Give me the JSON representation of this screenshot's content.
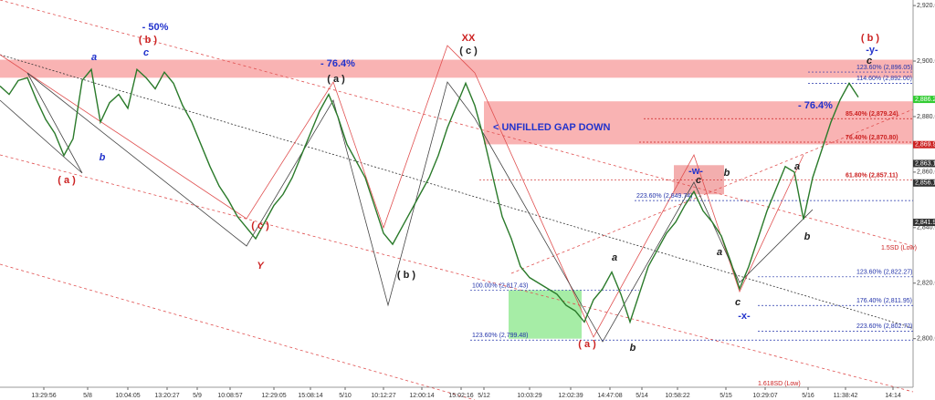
{
  "chart_data": {
    "type": "line",
    "series": [
      {
        "name": "Price",
        "color": "#2a7a2a",
        "values": [
          2891,
          2888,
          2893,
          2894,
          2886,
          2879,
          2874,
          2866,
          2872,
          2893,
          2897,
          2878,
          2885,
          2888,
          2883,
          2897,
          2894,
          2890,
          2896,
          2892,
          2884,
          2878,
          2870,
          2862,
          2855,
          2850,
          2844,
          2840,
          2836,
          2842,
          2848,
          2852,
          2858,
          2866,
          2874,
          2882,
          2888,
          2880,
          2870,
          2864,
          2858,
          2848,
          2838,
          2834,
          2840,
          2846,
          2852,
          2858,
          2866,
          2876,
          2884,
          2892,
          2884,
          2872,
          2858,
          2844,
          2836,
          2826,
          2822,
          2820,
          2818,
          2816,
          2812,
          2810,
          2806,
          2814,
          2818,
          2824,
          2816,
          2806,
          2816,
          2826,
          2832,
          2838,
          2842,
          2848,
          2853,
          2846,
          2842,
          2837,
          2828,
          2818,
          2826,
          2836,
          2846,
          2854,
          2862,
          2860,
          2843,
          2858,
          2868,
          2878,
          2886,
          2892,
          2887
        ]
      }
    ],
    "xlim": [
      0,
      100
    ],
    "xticks": [
      {
        "value": 4.8,
        "label": "13:29:56"
      },
      {
        "value": 9.6,
        "label": "5/8"
      },
      {
        "value": 14,
        "label": "10:04:05"
      },
      {
        "value": 18.3,
        "label": "13:20:27"
      },
      {
        "value": 21.6,
        "label": "5/9"
      },
      {
        "value": 25.2,
        "label": "10:08:57"
      },
      {
        "value": 30,
        "label": "12:29:05"
      },
      {
        "value": 34,
        "label": "15:08:14"
      },
      {
        "value": 37.8,
        "label": "5/10"
      },
      {
        "value": 42,
        "label": "10:12:27"
      },
      {
        "value": 46.2,
        "label": "12:00:14"
      },
      {
        "value": 50.5,
        "label": "15:02:16"
      },
      {
        "value": 53,
        "label": "5/12"
      },
      {
        "value": 58,
        "label": "10:03:29"
      },
      {
        "value": 62.5,
        "label": "12:02:39"
      },
      {
        "value": 66.8,
        "label": "14:47:08"
      },
      {
        "value": 70.3,
        "label": "5/14"
      },
      {
        "value": 74.2,
        "label": "10:58:22"
      },
      {
        "value": 79.5,
        "label": "5/15"
      },
      {
        "value": 83.8,
        "label": "10:29:07"
      },
      {
        "value": 88.5,
        "label": "5/16"
      },
      {
        "value": 92.6,
        "label": "11:38:42"
      },
      {
        "value": 97.8,
        "label": "14:14"
      }
    ],
    "ylim": [
      2782.5,
      2922
    ],
    "yticks": [
      {
        "value": 2800,
        "label": "2,800.0"
      },
      {
        "value": 2820,
        "label": "2,820.0"
      },
      {
        "value": 2840,
        "label": "2,840.0"
      },
      {
        "value": 2860,
        "label": "2,860.0"
      },
      {
        "value": 2880,
        "label": "2,880.0"
      },
      {
        "value": 2900,
        "label": "2,900.0"
      },
      {
        "value": 2920,
        "label": "2,920.0"
      }
    ],
    "price_labels": [
      {
        "value": 2886.2,
        "label": "2,886.2",
        "color": "#33cc33"
      },
      {
        "value": 2869.9,
        "label": "2,869.9",
        "color": "#cc2222"
      },
      {
        "value": 2863.1,
        "label": "2,863.1",
        "color": "#333333"
      },
      {
        "value": 2856.1,
        "label": "2,856.1",
        "color": "#333333"
      },
      {
        "value": 2841.9,
        "label": "2,841.9",
        "color": "#333333"
      }
    ],
    "zones": [
      {
        "low": 2894,
        "high": 2900.5,
        "color": "#f7a0a0"
      },
      {
        "low": 2870,
        "high": 2885.5,
        "color": "#f7a0a0"
      },
      {
        "low": 2852,
        "high": 2862.5,
        "color": "#f09a9a"
      },
      {
        "low": 2800,
        "high": 2817.5,
        "color": "#90e890"
      }
    ],
    "levels": [
      {
        "value": 2896.05,
        "label": "123.60% (2,896.05)",
        "color": "#2233aa"
      },
      {
        "value": 2892,
        "label": "114.60% (2,892.00)",
        "color": "#2233aa"
      },
      {
        "value": 2879.24,
        "label": "85.40% (2,879.24)",
        "color": "#cc2222"
      },
      {
        "value": 2870.8,
        "label": "76.40% (2,870.80)",
        "color": "#cc2222"
      },
      {
        "value": 2857.11,
        "label": "61.80% (2,857.11)",
        "color": "#cc2222"
      },
      {
        "value": 2849.74,
        "label": "223.60% (2,849.74)",
        "color": "#2233aa"
      },
      {
        "value": 2822.27,
        "label": "123.60% (2,822.27)",
        "color": "#2233aa"
      },
      {
        "value": 2817.43,
        "label": "100.00% (2,817.43)",
        "color": "#2233aa"
      },
      {
        "value": 2811.95,
        "label": "176.40% (2,811.95)",
        "color": "#2233aa"
      },
      {
        "value": 2802.72,
        "label": "223.60% (2,802.72)",
        "color": "#2233aa"
      },
      {
        "value": 2799.48,
        "label": "123.60% (2,799.48)",
        "color": "#2233aa"
      }
    ],
    "annotations": [
      {
        "text": "- 50%",
        "color": "#2233cc"
      },
      {
        "text": "( b )",
        "color": "#cc2222"
      },
      {
        "text": "a",
        "color": "#2233cc"
      },
      {
        "text": "c",
        "color": "#2233cc"
      },
      {
        "text": "b",
        "color": "#2233cc"
      },
      {
        "text": "( a )",
        "color": "#cc2222"
      },
      {
        "text": "- 76.4%",
        "color": "#2233cc"
      },
      {
        "text": "( a )",
        "color": "#222222"
      },
      {
        "text": "( c )",
        "color": "#cc2222"
      },
      {
        "text": "Y",
        "color": "#cc2222"
      },
      {
        "text": "( b )",
        "color": "#222222"
      },
      {
        "text": "XX",
        "color": "#cc2222"
      },
      {
        "text": "( c )",
        "color": "#222222"
      },
      {
        "text": "< UNFILLED GAP DOWN",
        "color": "#2233cc"
      },
      {
        "text": "- 76.4%",
        "color": "#2233cc"
      },
      {
        "text": "( b )",
        "color": "#cc2222"
      },
      {
        "text": "-y-",
        "color": "#2233cc"
      },
      {
        "text": "c",
        "color": "#222222"
      },
      {
        "text": "-w-",
        "color": "#2233cc"
      },
      {
        "text": "c",
        "color": "#222222"
      },
      {
        "text": "b",
        "color": "#222222"
      },
      {
        "text": "a",
        "color": "#222222"
      },
      {
        "text": "c",
        "color": "#222222"
      },
      {
        "text": "-x-",
        "color": "#2233cc"
      },
      {
        "text": "a",
        "color": "#222222"
      },
      {
        "text": "b",
        "color": "#222222"
      },
      {
        "text": "a",
        "color": "#222222"
      },
      {
        "text": "b",
        "color": "#222222"
      },
      {
        "text": "( a )",
        "color": "#cc2222"
      }
    ],
    "channel_labels": [
      {
        "text": "1.5SD (Low)",
        "color": "#cc2222"
      },
      {
        "text": "1.618SD (Low)",
        "color": "#cc2222"
      }
    ]
  }
}
